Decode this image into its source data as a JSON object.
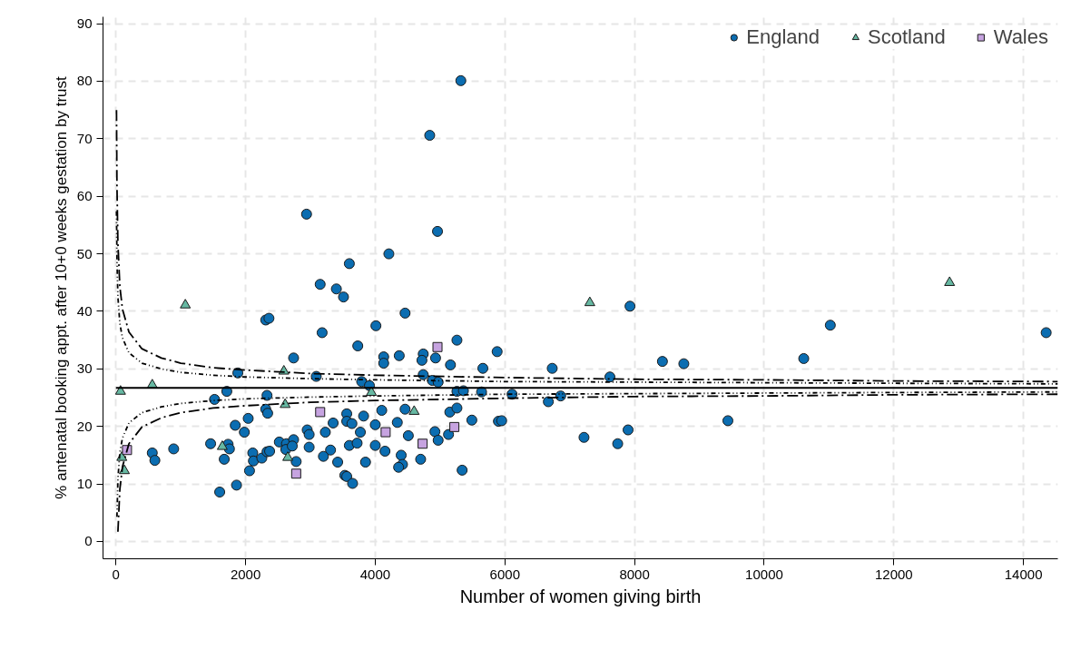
{
  "chart_data": {
    "type": "scatter",
    "xlabel": "Number of women giving birth",
    "ylabel": "% antenatal booking appt. after 10+0 weeks gestation by trust",
    "xlim": [
      -200,
      14530
    ],
    "ylim": [
      -3,
      91.2
    ],
    "xticks": [
      0,
      2000,
      4000,
      6000,
      8000,
      10000,
      12000,
      14000
    ],
    "yticks": [
      0,
      10,
      20,
      30,
      40,
      50,
      60,
      70,
      80,
      90
    ],
    "grid": true,
    "legend": "top right",
    "series": [
      {
        "name": "England",
        "marker": "circle",
        "color": "#0b6db1",
        "x": [
          5320,
          4840,
          4960,
          2940,
          4210,
          3600,
          3150,
          3400,
          3510,
          4460,
          2310,
          2360,
          4010,
          3180,
          5260,
          3730,
          5880,
          2740,
          4130,
          4130,
          4370,
          4740,
          4720,
          4930,
          5160,
          5660,
          3090,
          4740,
          4880,
          4970,
          3790,
          3910,
          5260,
          5360,
          5640,
          6110,
          5150,
          5260,
          4460,
          4100,
          3560,
          3820,
          3560,
          3640,
          3350,
          4000,
          4340,
          5490,
          5900,
          5950,
          2950,
          2980,
          3230,
          3770,
          4510,
          4920,
          4970,
          5130,
          2520,
          2630,
          2740,
          2620,
          2720,
          2980,
          3310,
          3600,
          3720,
          4000,
          4150,
          4400,
          2780,
          3200,
          3420,
          3850,
          4700,
          4420,
          4360,
          3530,
          3560,
          3650,
          5340,
          1880,
          1520,
          1710,
          2330,
          2310,
          2340,
          2040,
          1840,
          1980,
          1460,
          1730,
          1750,
          1670,
          2110,
          2120,
          2060,
          2250,
          2330,
          2370,
          1860,
          1600,
          560,
          600,
          890,
          6730,
          7620,
          7930,
          8430,
          8760,
          6670,
          6860,
          7220,
          7740,
          7900,
          9440,
          11020,
          10610,
          14350
        ],
        "values": [
          80.1,
          70.6,
          53.9,
          56.9,
          50.0,
          48.3,
          44.7,
          43.9,
          42.5,
          39.7,
          38.5,
          38.8,
          37.5,
          36.3,
          35.0,
          34.0,
          33.0,
          31.9,
          32.1,
          31.0,
          32.3,
          32.6,
          31.5,
          31.9,
          30.7,
          30.1,
          28.7,
          29.0,
          28.0,
          27.7,
          27.8,
          27.1,
          26.1,
          26.2,
          26.0,
          25.6,
          22.5,
          23.2,
          23.0,
          22.8,
          22.2,
          21.8,
          20.9,
          20.5,
          20.6,
          20.3,
          20.7,
          21.1,
          20.9,
          21.0,
          19.4,
          18.6,
          19.0,
          19.0,
          18.4,
          19.1,
          17.6,
          18.6,
          17.3,
          17.0,
          17.7,
          16.0,
          16.6,
          16.4,
          15.9,
          16.7,
          17.1,
          16.7,
          15.7,
          15.0,
          13.9,
          14.8,
          13.8,
          13.8,
          14.3,
          13.4,
          12.9,
          11.5,
          11.3,
          10.1,
          12.4,
          29.3,
          24.7,
          26.1,
          25.4,
          23.0,
          22.3,
          21.4,
          20.2,
          19.0,
          17.0,
          16.9,
          16.1,
          14.3,
          15.4,
          14.0,
          12.3,
          14.5,
          15.6,
          15.7,
          9.8,
          8.6,
          15.4,
          14.1,
          16.1,
          30.1,
          28.6,
          40.9,
          31.3,
          30.9,
          24.3,
          25.3,
          18.1,
          17.0,
          19.4,
          21.0,
          37.6,
          31.8,
          36.3
        ]
      },
      {
        "name": "Scotland",
        "marker": "triangle",
        "color": "#66b8a2",
        "x": [
          1070,
          70,
          560,
          2590,
          2610,
          1640,
          2650,
          3940,
          4600,
          90,
          130,
          7310,
          12860
        ],
        "values": [
          41.1,
          26.1,
          27.2,
          29.6,
          23.8,
          16.5,
          14.6,
          25.9,
          22.6,
          14.6,
          12.3,
          41.5,
          45.0
        ]
      },
      {
        "name": "Wales",
        "marker": "square",
        "color": "#c6a3e0",
        "x": [
          170,
          2780,
          3150,
          4160,
          4730,
          4960,
          5220
        ],
        "values": [
          15.9,
          11.8,
          22.5,
          19.0,
          17.0,
          33.8,
          19.9
        ]
      },
      {
        "type": "line",
        "line_style": "solid",
        "color": "#000000",
        "x": [
          0,
          14530
        ],
        "values": [
          26.7,
          26.7
        ]
      },
      {
        "type": "line",
        "line_style": "dashed",
        "color": "#000000",
        "x": [
          8,
          15,
          30,
          60,
          100,
          200,
          400,
          700,
          1000,
          1500,
          2000,
          3000,
          4000,
          6000,
          8000,
          10000,
          12000,
          14530
        ],
        "values": [
          75.0,
          62.0,
          51.7,
          44.3,
          40.4,
          36.4,
          33.5,
          31.9,
          31.0,
          30.2,
          29.8,
          29.2,
          28.9,
          28.5,
          28.2,
          28.1,
          27.9,
          27.8
        ]
      },
      {
        "type": "line",
        "line_style": "dashed",
        "color": "#000000",
        "x": [
          30,
          60,
          100,
          200,
          400,
          700,
          1000,
          1500,
          2000,
          3000,
          4000,
          6000,
          8000,
          10000,
          12000,
          14530
        ],
        "values": [
          1.7,
          9.1,
          13.0,
          17.0,
          19.9,
          21.5,
          22.4,
          23.2,
          23.6,
          24.2,
          24.5,
          24.9,
          25.2,
          25.3,
          25.5,
          25.6
        ]
      },
      {
        "type": "line",
        "line_style": "dotted",
        "color": "#000000",
        "x": [
          8,
          15,
          30,
          60,
          100,
          200,
          400,
          700,
          1000,
          1500,
          2000,
          3000,
          4000,
          6000,
          8000,
          10000,
          12000,
          14530
        ],
        "values": [
          57.4,
          49.1,
          42.5,
          37.9,
          35.4,
          32.8,
          31.0,
          30.0,
          29.4,
          28.9,
          28.6,
          28.3,
          28.1,
          27.8,
          27.7,
          27.6,
          27.5,
          27.4
        ]
      },
      {
        "type": "line",
        "line_style": "dotted",
        "color": "#000000",
        "x": [
          15,
          30,
          60,
          100,
          200,
          400,
          700,
          1000,
          1500,
          2000,
          3000,
          4000,
          6000,
          8000,
          10000,
          12000,
          14530
        ],
        "values": [
          4.3,
          10.9,
          15.5,
          18.0,
          20.6,
          22.4,
          23.4,
          24.0,
          24.5,
          24.8,
          25.1,
          25.3,
          25.6,
          25.7,
          25.8,
          25.9,
          26.0
        ]
      }
    ]
  }
}
